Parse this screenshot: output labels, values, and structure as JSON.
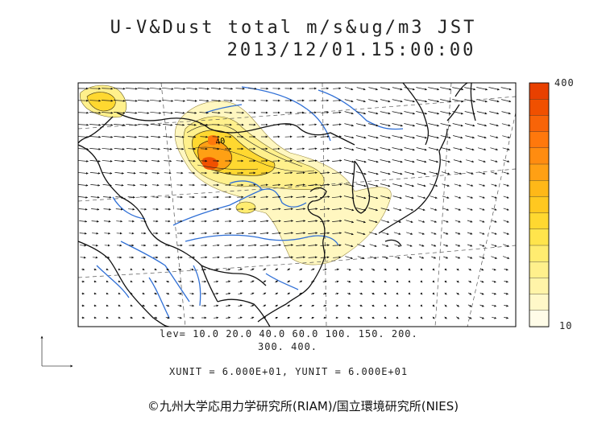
{
  "title": {
    "line1": "U-V&Dust total m/s&ug/m3 JST",
    "line2": "2013/12/01.15:00:00"
  },
  "contour_levels": {
    "line1": "lev= 10.0 20.0 40.0 60.0 100. 150. 200.",
    "line2": "300. 400."
  },
  "units_line": "XUNIT = 6.000E+01, YUNIT = 6.000E+01",
  "colorbar": {
    "max_label": "400",
    "min_label": "10",
    "colors": [
      "#fffce8",
      "#fff8c8",
      "#fff4a8",
      "#fff08c",
      "#ffec70",
      "#ffe44c",
      "#ffd830",
      "#ffc820",
      "#ffb818",
      "#ffa014",
      "#ff8c10",
      "#ff780c",
      "#f86408",
      "#f05000",
      "#e84000"
    ]
  },
  "map_labels": {
    "contour_label": "40"
  },
  "copyright": "©九州大学応用力学研究所(RIAM)/国立環境研究所(NIES)"
}
